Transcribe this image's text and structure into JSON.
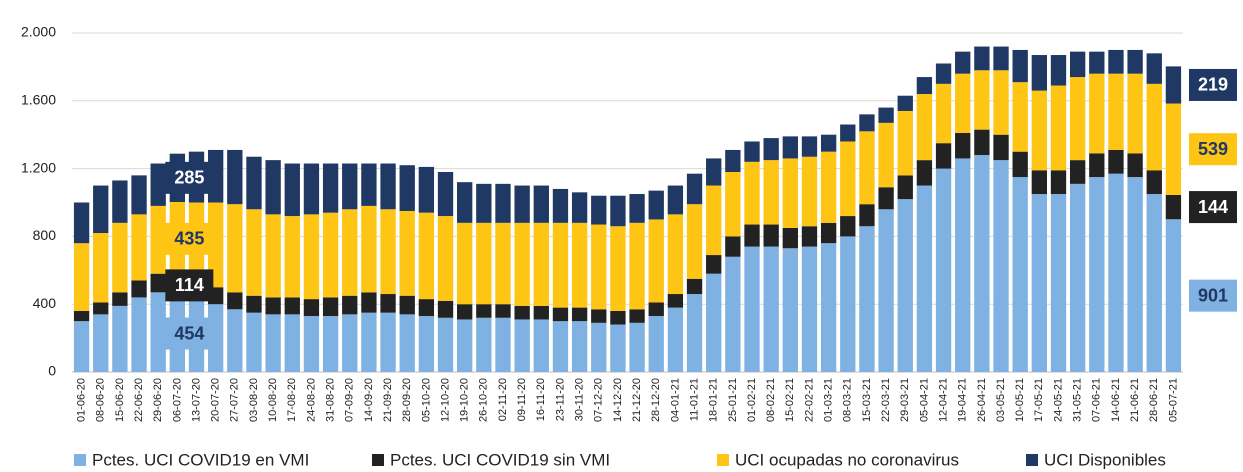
{
  "chart_data": {
    "type": "stacked_bar",
    "categories": [
      "01-06-20",
      "08-06-20",
      "15-06-20",
      "22-06-20",
      "29-06-20",
      "06-07-20",
      "13-07-20",
      "20-07-20",
      "27-07-20",
      "03-08-20",
      "10-08-20",
      "17-08-20",
      "24-08-20",
      "31-08-20",
      "07-09-20",
      "14-09-20",
      "21-09-20",
      "28-09-20",
      "05-10-20",
      "12-10-20",
      "19-10-20",
      "26-10-20",
      "02-11-20",
      "09-11-20",
      "16-11-20",
      "23-11-20",
      "30-11-20",
      "07-12-20",
      "14-12-20",
      "21-12-20",
      "28-12-20",
      "04-01-21",
      "11-01-21",
      "18-01-21",
      "25-01-21",
      "01-02-21",
      "08-02-21",
      "15-02-21",
      "22-02-21",
      "01-03-21",
      "08-03-21",
      "15-03-21",
      "22-03-21",
      "29-03-21",
      "05-04-21",
      "12-04-21",
      "19-04-21",
      "26-04-21",
      "03-05-21",
      "10-05-21",
      "17-05-21",
      "24-05-21",
      "31-05-21",
      "07-06-21",
      "14-06-21",
      "21-06-21",
      "28-06-21",
      "05-07-21"
    ],
    "series": [
      {
        "name": "Pctes. UCI COVID19 en VMI",
        "color": "#7fb1e3",
        "label_color": "#1f3864",
        "values": [
          300,
          340,
          390,
          440,
          470,
          454,
          430,
          400,
          370,
          350,
          340,
          340,
          330,
          330,
          340,
          350,
          350,
          340,
          330,
          320,
          310,
          320,
          320,
          310,
          310,
          300,
          300,
          290,
          280,
          290,
          330,
          380,
          460,
          580,
          680,
          740,
          740,
          730,
          740,
          760,
          800,
          860,
          960,
          1020,
          1100,
          1200,
          1260,
          1280,
          1250,
          1150,
          1050,
          1050,
          1110,
          1150,
          1170,
          1150,
          1050,
          901
        ],
        "value_labels": [
          null,
          null,
          null,
          null,
          null,
          "454",
          null,
          null,
          null,
          null,
          null,
          null,
          null,
          null,
          null,
          null,
          null,
          null,
          null,
          null,
          null,
          null,
          null,
          null,
          null,
          null,
          null,
          null,
          null,
          null,
          null,
          null,
          null,
          null,
          null,
          null,
          null,
          null,
          null,
          null,
          null,
          null,
          null,
          null,
          null,
          null,
          null,
          null,
          null,
          null,
          null,
          null,
          null,
          null,
          null,
          null,
          null,
          "901"
        ]
      },
      {
        "name": "Pctes. UCI COVID19 sin VMI",
        "color": "#222222",
        "label_color": "#ffffff",
        "values": [
          60,
          70,
          80,
          100,
          110,
          114,
          110,
          100,
          100,
          100,
          100,
          100,
          100,
          110,
          110,
          120,
          110,
          110,
          100,
          100,
          90,
          80,
          80,
          80,
          80,
          80,
          80,
          80,
          80,
          80,
          80,
          80,
          90,
          110,
          120,
          130,
          130,
          120,
          120,
          120,
          120,
          130,
          130,
          140,
          150,
          150,
          150,
          150,
          150,
          150,
          140,
          140,
          140,
          140,
          140,
          140,
          140,
          144
        ],
        "value_labels": [
          null,
          null,
          null,
          null,
          null,
          "114",
          null,
          null,
          null,
          null,
          null,
          null,
          null,
          null,
          null,
          null,
          null,
          null,
          null,
          null,
          null,
          null,
          null,
          null,
          null,
          null,
          null,
          null,
          null,
          null,
          null,
          null,
          null,
          null,
          null,
          null,
          null,
          null,
          null,
          null,
          null,
          null,
          null,
          null,
          null,
          null,
          null,
          null,
          null,
          null,
          null,
          null,
          null,
          null,
          null,
          null,
          null,
          "144"
        ]
      },
      {
        "name": "UCI ocupadas no coronavirus",
        "color": "#ffc514",
        "label_color": "#1f3864",
        "values": [
          400,
          410,
          410,
          390,
          400,
          435,
          460,
          500,
          520,
          510,
          490,
          480,
          500,
          500,
          510,
          510,
          500,
          500,
          510,
          500,
          480,
          480,
          480,
          490,
          490,
          500,
          500,
          500,
          500,
          510,
          490,
          470,
          440,
          410,
          380,
          370,
          380,
          410,
          410,
          420,
          440,
          430,
          380,
          380,
          390,
          350,
          350,
          350,
          380,
          410,
          470,
          500,
          490,
          470,
          450,
          470,
          510,
          539
        ],
        "value_labels": [
          null,
          null,
          null,
          null,
          null,
          "435",
          null,
          null,
          null,
          null,
          null,
          null,
          null,
          null,
          null,
          null,
          null,
          null,
          null,
          null,
          null,
          null,
          null,
          null,
          null,
          null,
          null,
          null,
          null,
          null,
          null,
          null,
          null,
          null,
          null,
          null,
          null,
          null,
          null,
          null,
          null,
          null,
          null,
          null,
          null,
          null,
          null,
          null,
          null,
          null,
          null,
          null,
          null,
          null,
          null,
          null,
          null,
          "539"
        ]
      },
      {
        "name": "UCI Disponibles",
        "color": "#1f3864",
        "label_color": "#ffffff",
        "values": [
          240,
          280,
          250,
          230,
          250,
          285,
          300,
          310,
          320,
          310,
          320,
          310,
          300,
          290,
          270,
          250,
          270,
          270,
          270,
          260,
          240,
          230,
          230,
          220,
          220,
          200,
          180,
          170,
          180,
          170,
          170,
          170,
          180,
          160,
          130,
          120,
          130,
          130,
          120,
          100,
          100,
          100,
          90,
          90,
          100,
          120,
          130,
          140,
          140,
          190,
          210,
          180,
          150,
          130,
          140,
          140,
          180,
          219
        ],
        "value_labels": [
          null,
          null,
          null,
          null,
          null,
          "285",
          null,
          null,
          null,
          null,
          null,
          null,
          null,
          null,
          null,
          null,
          null,
          null,
          null,
          null,
          null,
          null,
          null,
          null,
          null,
          null,
          null,
          null,
          null,
          null,
          null,
          null,
          null,
          null,
          null,
          null,
          null,
          null,
          null,
          null,
          null,
          null,
          null,
          null,
          null,
          null,
          null,
          null,
          null,
          null,
          null,
          null,
          null,
          null,
          null,
          null,
          null,
          "219"
        ]
      }
    ],
    "ylim": [
      0,
      2000
    ],
    "yticks": [
      0,
      400,
      800,
      {
        "value": 1200,
        "label": "1.200"
      },
      {
        "value": 1600,
        "label": "1.600"
      },
      {
        "value": 2000,
        "label": "2.000"
      }
    ],
    "grid": true,
    "legend": "bottom"
  }
}
